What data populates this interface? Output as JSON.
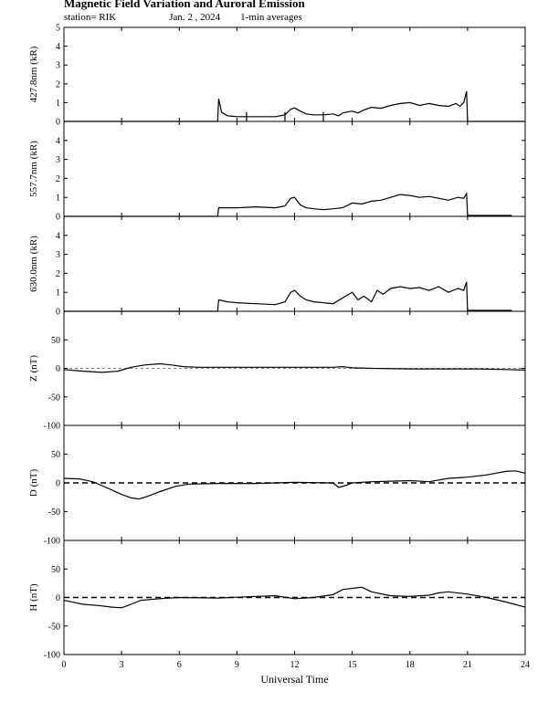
{
  "title": "Magnetic Field Variation and Auroral Emission",
  "station": "station= RIK",
  "date": "Jan. 2 , 2024",
  "averaging": "1-min averages",
  "chart_data": [
    {
      "type": "line",
      "ylabel": "427.8nm (kR)",
      "ylim": [
        0,
        5
      ],
      "yticks": [
        0,
        1,
        2,
        3,
        4,
        5
      ],
      "x": [
        0,
        8,
        8.05,
        8.2,
        8.5,
        9,
        10,
        11,
        11.5,
        11.8,
        12,
        12.3,
        12.6,
        13,
        13.5,
        14,
        14.3,
        14.5,
        15,
        15.3,
        15.6,
        16,
        16.5,
        17,
        17.5,
        18,
        18.5,
        19,
        19.5,
        20,
        20.4,
        20.6,
        20.8,
        20.95,
        21,
        24
      ],
      "y": [
        0,
        0,
        1.2,
        0.5,
        0.3,
        0.25,
        0.25,
        0.25,
        0.35,
        0.65,
        0.72,
        0.55,
        0.4,
        0.35,
        0.35,
        0.4,
        0.3,
        0.45,
        0.55,
        0.45,
        0.6,
        0.75,
        0.7,
        0.85,
        0.95,
        1.0,
        0.85,
        0.95,
        0.85,
        0.8,
        0.95,
        0.8,
        1.0,
        1.6,
        0,
        0
      ],
      "tick_marks_x": [
        9.5,
        11.5,
        13.5
      ]
    },
    {
      "type": "line",
      "ylabel": "557.7nm (kR)",
      "ylim": [
        0,
        5
      ],
      "yticks": [
        0,
        1,
        2,
        3,
        4
      ],
      "x": [
        0,
        8,
        8.05,
        9,
        10,
        11,
        11.5,
        11.8,
        12,
        12.3,
        12.6,
        13,
        13.5,
        14,
        14.5,
        15,
        15.5,
        16,
        16.5,
        17,
        17.5,
        18,
        18.5,
        19,
        19.5,
        20,
        20.5,
        20.8,
        20.95,
        21,
        22,
        23,
        23.3
      ],
      "y": [
        0,
        0,
        0.45,
        0.45,
        0.5,
        0.45,
        0.55,
        0.95,
        1.0,
        0.6,
        0.45,
        0.4,
        0.35,
        0.4,
        0.45,
        0.7,
        0.65,
        0.8,
        0.85,
        1.0,
        1.15,
        1.1,
        1.0,
        1.05,
        0.95,
        0.85,
        1.0,
        0.95,
        1.2,
        0.05,
        0.05,
        0.05,
        0.05
      ]
    },
    {
      "type": "line",
      "ylabel": "630.0nm (kR)",
      "ylim": [
        0,
        5
      ],
      "yticks": [
        0,
        1,
        2,
        3,
        4
      ],
      "x": [
        0,
        8,
        8.05,
        8.5,
        9,
        10,
        11,
        11.5,
        11.8,
        12,
        12.3,
        12.6,
        13,
        13.5,
        14,
        14.5,
        15,
        15.3,
        15.6,
        16,
        16.3,
        16.6,
        17,
        17.5,
        18,
        18.5,
        19,
        19.5,
        20,
        20.5,
        20.8,
        20.95,
        21,
        22,
        23,
        23.3
      ],
      "y": [
        0,
        0,
        0.6,
        0.5,
        0.45,
        0.4,
        0.35,
        0.5,
        1.0,
        1.1,
        0.8,
        0.6,
        0.5,
        0.45,
        0.4,
        0.7,
        1.0,
        0.6,
        0.8,
        0.5,
        1.1,
        0.9,
        1.2,
        1.3,
        1.2,
        1.25,
        1.1,
        1.3,
        1.0,
        1.2,
        1.1,
        1.55,
        0.05,
        0.05,
        0.05,
        0.05
      ]
    },
    {
      "type": "line",
      "ylabel": "Z (nT)",
      "ylim": [
        -100,
        100
      ],
      "yticks": [
        -100,
        -50,
        0,
        50
      ],
      "x": [
        0,
        1,
        2,
        2.8,
        3.5,
        4.2,
        5,
        5.6,
        6.2,
        7,
        9,
        12,
        14,
        14.5,
        15,
        16,
        18,
        20,
        21.5,
        23,
        24
      ],
      "y": [
        -2,
        -5,
        -7,
        -5,
        2,
        6,
        8,
        6,
        3,
        2,
        2,
        2,
        2,
        3,
        1,
        0,
        -1,
        -1,
        -1,
        -2,
        -3
      ],
      "dashed_zero": false
    },
    {
      "type": "line",
      "ylabel": "D (nT)",
      "ylim": [
        -100,
        100
      ],
      "yticks": [
        -100,
        -50,
        0,
        50
      ],
      "x": [
        0,
        0.8,
        1.5,
        2.2,
        3,
        3.5,
        3.9,
        4.3,
        5,
        5.8,
        6.5,
        8,
        10,
        12,
        14,
        14.3,
        14.7,
        15,
        16,
        17,
        18,
        19,
        20,
        21,
        22,
        23,
        23.5,
        24
      ],
      "y": [
        8,
        7,
        2,
        -8,
        -20,
        -26,
        -28,
        -24,
        -15,
        -6,
        -2,
        -1,
        -1,
        1,
        0,
        -8,
        -4,
        0,
        2,
        3,
        4,
        2,
        8,
        10,
        14,
        20,
        21,
        17
      ],
      "dashed_zero": true
    },
    {
      "type": "line",
      "ylabel": "H (nT)",
      "ylim": [
        -100,
        100
      ],
      "yticks": [
        -100,
        -50,
        0,
        50
      ],
      "x": [
        0,
        1,
        1.8,
        2.5,
        3,
        3.5,
        4,
        5,
        6,
        8,
        10,
        11,
        12,
        13,
        14,
        14.5,
        15,
        15.5,
        16,
        17,
        18,
        19,
        19.5,
        20,
        21,
        22,
        23,
        24
      ],
      "y": [
        -5,
        -12,
        -14,
        -17,
        -18,
        -12,
        -5,
        -2,
        0,
        -1,
        2,
        3,
        -2,
        0,
        5,
        14,
        16,
        18,
        10,
        3,
        2,
        4,
        8,
        10,
        6,
        0,
        -8,
        -17
      ],
      "dashed_zero": true
    }
  ],
  "x_axis": {
    "label": "Universal Time",
    "xlim": [
      0,
      24
    ],
    "ticks": [
      0,
      3,
      6,
      9,
      12,
      15,
      18,
      21,
      24
    ]
  }
}
